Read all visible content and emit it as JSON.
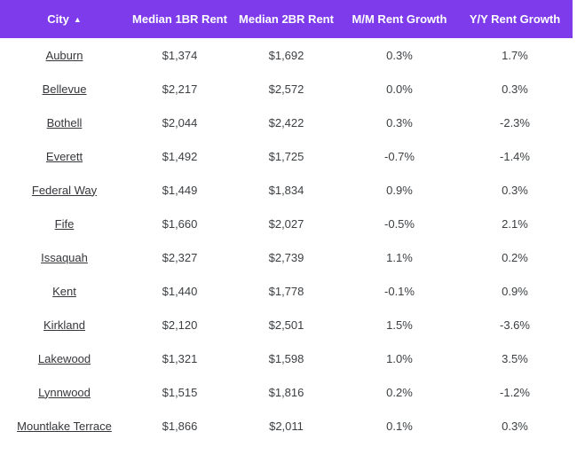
{
  "page": {
    "background_color": "#ffffff"
  },
  "table": {
    "header": {
      "bg_color": "#7d3bec",
      "text_color": "#ffffff",
      "columns": [
        "City",
        "Median 1BR Rent",
        "Median 2BR Rent",
        "M/M Rent Growth",
        "Y/Y Rent Growth"
      ],
      "sort": {
        "column": "City",
        "direction": "ascending",
        "icon": "▲"
      }
    },
    "body_text_color": "#3c4043",
    "city_link_color": "#35363a",
    "rows": [
      {
        "city": "Auburn",
        "median_1br": "$1,374",
        "median_2br": "$1,692",
        "mm_growth": "0.3%",
        "yy_growth": "1.7%"
      },
      {
        "city": "Bellevue",
        "median_1br": "$2,217",
        "median_2br": "$2,572",
        "mm_growth": "0.0%",
        "yy_growth": "0.3%"
      },
      {
        "city": "Bothell",
        "median_1br": "$2,044",
        "median_2br": "$2,422",
        "mm_growth": "0.3%",
        "yy_growth": "-2.3%"
      },
      {
        "city": "Everett",
        "median_1br": "$1,492",
        "median_2br": "$1,725",
        "mm_growth": "-0.7%",
        "yy_growth": "-1.4%"
      },
      {
        "city": "Federal Way",
        "median_1br": "$1,449",
        "median_2br": "$1,834",
        "mm_growth": "0.9%",
        "yy_growth": "0.3%"
      },
      {
        "city": "Fife",
        "median_1br": "$1,660",
        "median_2br": "$2,027",
        "mm_growth": "-0.5%",
        "yy_growth": "2.1%"
      },
      {
        "city": "Issaquah",
        "median_1br": "$2,327",
        "median_2br": "$2,739",
        "mm_growth": "1.1%",
        "yy_growth": "0.2%"
      },
      {
        "city": "Kent",
        "median_1br": "$1,440",
        "median_2br": "$1,778",
        "mm_growth": "-0.1%",
        "yy_growth": "0.9%"
      },
      {
        "city": "Kirkland",
        "median_1br": "$2,120",
        "median_2br": "$2,501",
        "mm_growth": "1.5%",
        "yy_growth": "-3.6%"
      },
      {
        "city": "Lakewood",
        "median_1br": "$1,321",
        "median_2br": "$1,598",
        "mm_growth": "1.0%",
        "yy_growth": "3.5%"
      },
      {
        "city": "Lynnwood",
        "median_1br": "$1,515",
        "median_2br": "$1,816",
        "mm_growth": "0.2%",
        "yy_growth": "-1.2%"
      },
      {
        "city": "Mountlake Terrace",
        "median_1br": "$1,866",
        "median_2br": "$2,011",
        "mm_growth": "0.1%",
        "yy_growth": "0.3%"
      }
    ]
  }
}
